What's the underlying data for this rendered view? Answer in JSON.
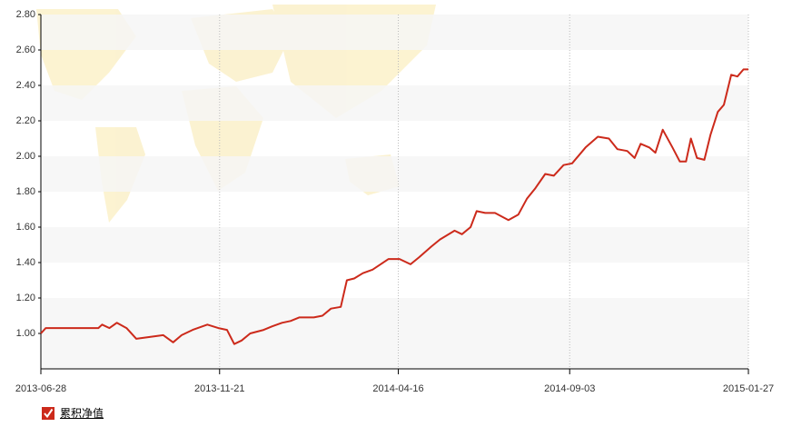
{
  "chart_data": {
    "type": "line",
    "x": [
      "2013-06-28",
      "2013-07-02",
      "2013-08-14",
      "2013-08-17",
      "2013-08-23",
      "2013-08-29",
      "2013-09-06",
      "2013-09-14",
      "2013-09-25",
      "2013-10-06",
      "2013-10-14",
      "2013-10-21",
      "2013-10-30",
      "2013-11-11",
      "2013-11-20",
      "2013-11-27",
      "2013-12-03",
      "2013-12-09",
      "2013-12-16",
      "2013-12-27",
      "2014-01-03",
      "2014-01-11",
      "2014-01-18",
      "2014-01-25",
      "2014-02-06",
      "2014-02-13",
      "2014-02-20",
      "2014-02-28",
      "2014-03-05",
      "2014-03-11",
      "2014-03-18",
      "2014-03-26",
      "2014-04-08",
      "2014-04-17",
      "2014-04-26",
      "2014-05-03",
      "2014-05-13",
      "2014-05-20",
      "2014-06-01",
      "2014-06-07",
      "2014-06-14",
      "2014-06-19",
      "2014-06-26",
      "2014-07-04",
      "2014-07-15",
      "2014-07-23",
      "2014-07-30",
      "2014-08-06",
      "2014-08-14",
      "2014-08-21",
      "2014-08-29",
      "2014-09-05",
      "2014-09-16",
      "2014-09-26",
      "2014-10-05",
      "2014-10-12",
      "2014-10-20",
      "2014-10-26",
      "2014-10-31",
      "2014-11-07",
      "2014-11-12",
      "2014-11-18",
      "2014-11-26",
      "2014-12-02",
      "2014-12-07",
      "2014-12-11",
      "2014-12-16",
      "2014-12-22",
      "2014-12-27",
      "2015-01-02",
      "2015-01-07",
      "2015-01-13",
      "2015-01-18",
      "2015-01-23",
      "2015-01-27"
    ],
    "series": [
      {
        "name": "累积净值",
        "color": "#cc2a1b",
        "values": [
          1.0,
          1.03,
          1.03,
          1.05,
          1.03,
          1.06,
          1.03,
          0.97,
          0.98,
          0.99,
          0.95,
          0.99,
          1.02,
          1.05,
          1.03,
          1.02,
          0.94,
          0.96,
          1.0,
          1.02,
          1.04,
          1.06,
          1.07,
          1.09,
          1.09,
          1.1,
          1.14,
          1.15,
          1.3,
          1.31,
          1.34,
          1.36,
          1.42,
          1.42,
          1.39,
          1.43,
          1.49,
          1.53,
          1.58,
          1.56,
          1.6,
          1.69,
          1.68,
          1.68,
          1.64,
          1.67,
          1.76,
          1.82,
          1.9,
          1.89,
          1.95,
          1.96,
          2.05,
          2.11,
          2.1,
          2.04,
          2.03,
          1.99,
          2.07,
          2.05,
          2.02,
          2.15,
          2.05,
          1.97,
          1.97,
          2.1,
          1.99,
          1.98,
          2.12,
          2.25,
          2.29,
          2.46,
          2.45,
          2.49,
          2.49
        ]
      }
    ],
    "xlim": [
      "2013-06-28",
      "2015-01-27"
    ],
    "xticks": [
      "2013-06-28",
      "2013-11-21",
      "2014-04-16",
      "2014-09-03",
      "2015-01-27"
    ],
    "ylim": [
      0.8,
      2.8
    ],
    "yticks": [
      {
        "value": 1,
        "label": "1.00"
      },
      {
        "value": 1.2,
        "label": "1.20"
      },
      {
        "value": 1.4,
        "label": "1.40"
      },
      {
        "value": 1.6,
        "label": "1.60"
      },
      {
        "value": 1.8,
        "label": "1.80"
      },
      {
        "value": 2,
        "label": "2.00"
      },
      {
        "value": 2.2,
        "label": "2.20"
      },
      {
        "value": 2.4,
        "label": "2.40"
      },
      {
        "value": 2.6,
        "label": "2.60"
      },
      {
        "value": 2.8,
        "label": "2.80"
      }
    ],
    "grid": true
  }
}
